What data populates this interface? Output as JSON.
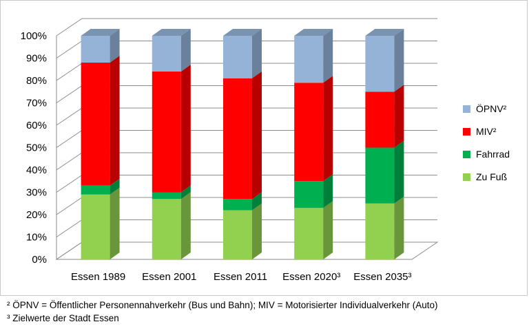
{
  "chart_data": {
    "type": "bar",
    "stacked": true,
    "three_d": true,
    "categories": [
      "Essen 1989",
      "Essen 2001",
      "Essen 2011",
      "Essen 2020³",
      "Essen 2035³"
    ],
    "series": [
      {
        "name": "Zu Fuß",
        "color": "#92d050",
        "values": [
          29,
          27,
          22,
          23,
          25
        ]
      },
      {
        "name": "Fahrrad",
        "color": "#00b050",
        "values": [
          4,
          3,
          5,
          12,
          25
        ]
      },
      {
        "name": "MIV²",
        "color": "#ff0000",
        "values": [
          55,
          54,
          54,
          44,
          25
        ]
      },
      {
        "name": "ÖPNV²",
        "color": "#95b3d7",
        "values": [
          12,
          16,
          19,
          21,
          25
        ]
      }
    ],
    "ylim": [
      0,
      100
    ],
    "yticks": [
      "0%",
      "10%",
      "20%",
      "30%",
      "40%",
      "50%",
      "60%",
      "70%",
      "80%",
      "90%",
      "100%"
    ],
    "legend_position": "right",
    "grid": true
  },
  "footnotes": [
    "² ÖPNV = Öffentlicher Personennahverkehr (Bus und Bahn); MIV = Motorisierter Individualverkehr (Auto)",
    "³ Zielwerte der Stadt Essen"
  ]
}
